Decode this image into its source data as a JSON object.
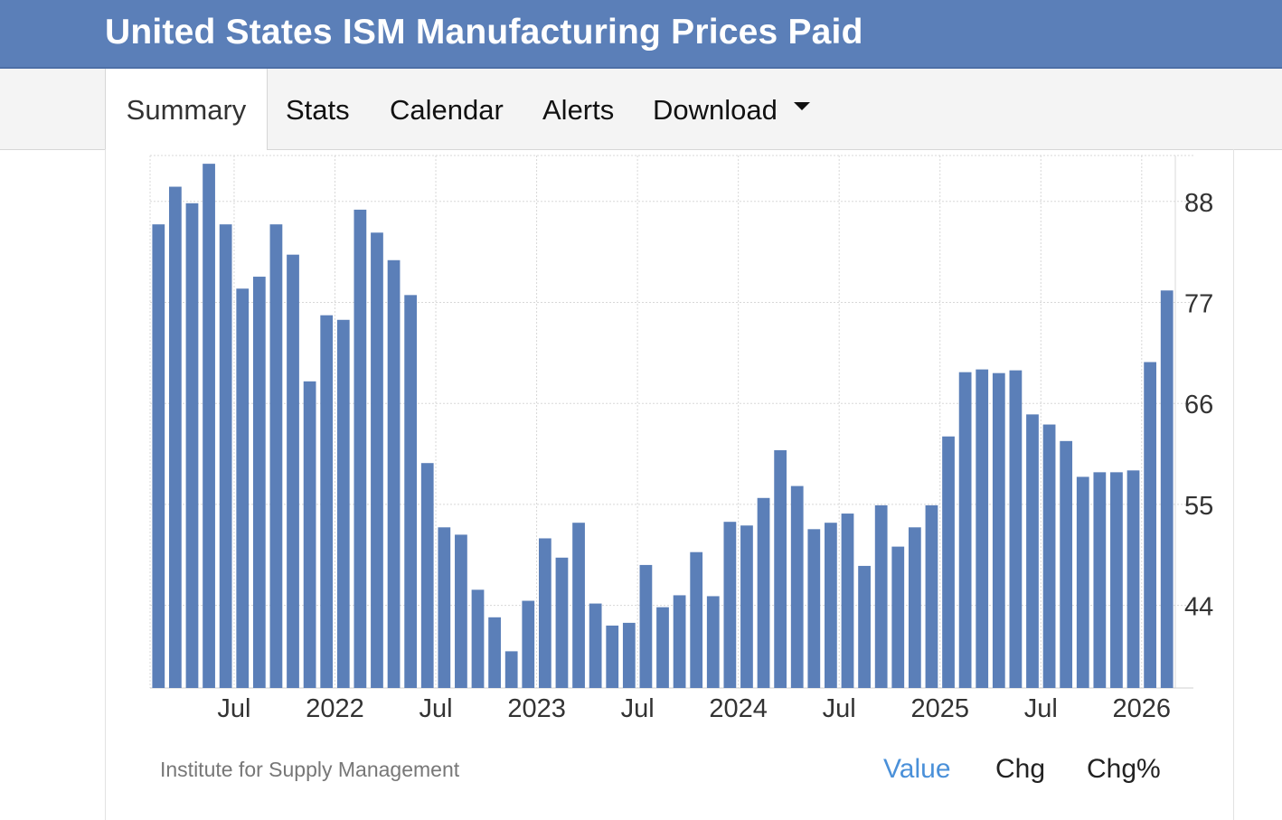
{
  "header": {
    "title": "United States ISM Manufacturing Prices Paid"
  },
  "tabs": [
    {
      "label": "Summary"
    },
    {
      "label": "Stats"
    },
    {
      "label": "Calendar"
    },
    {
      "label": "Alerts"
    },
    {
      "label": "Download"
    }
  ],
  "footer": {
    "source": "Institute for Supply Management",
    "modes": [
      "Value",
      "Chg",
      "Chg%"
    ],
    "active_mode": "Value"
  },
  "colors": {
    "bar": "#5b7fb8",
    "header": "#5b7fb8",
    "active_link": "#4a90d9"
  },
  "icons": {
    "download_dropdown": "caret-down-icon"
  },
  "chart_data": {
    "type": "bar",
    "y_axis_position": "right",
    "ylim": [
      35,
      93
    ],
    "yticks": [
      44,
      55,
      66,
      77,
      88
    ],
    "grid": true,
    "x_tick_labels": [
      {
        "label": "Jul",
        "index": 4
      },
      {
        "label": "2022",
        "index": 10
      },
      {
        "label": "Jul",
        "index": 16
      },
      {
        "label": "2023",
        "index": 22
      },
      {
        "label": "Jul",
        "index": 28
      },
      {
        "label": "2024",
        "index": 34
      },
      {
        "label": "Jul",
        "index": 40
      },
      {
        "label": "2025",
        "index": 46
      },
      {
        "label": "Jul",
        "index": 52
      },
      {
        "label": "2026",
        "index": 58
      }
    ],
    "values": [
      85.5,
      89.6,
      87.8,
      92.1,
      85.5,
      78.5,
      79.8,
      85.5,
      82.2,
      68.4,
      75.6,
      75.1,
      87.1,
      84.6,
      81.6,
      77.8,
      59.5,
      52.5,
      51.7,
      45.7,
      42.7,
      39.0,
      44.5,
      51.3,
      49.2,
      53.0,
      44.2,
      41.8,
      42.1,
      48.4,
      43.8,
      45.1,
      49.8,
      45.0,
      53.1,
      52.7,
      55.7,
      60.9,
      57.0,
      52.3,
      53.0,
      54.0,
      48.3,
      54.9,
      50.4,
      52.5,
      54.9,
      62.4,
      69.4,
      69.7,
      69.3,
      69.6,
      64.8,
      63.7,
      61.9,
      58.0,
      58.5,
      58.5,
      58.7,
      70.5,
      78.3
    ]
  }
}
